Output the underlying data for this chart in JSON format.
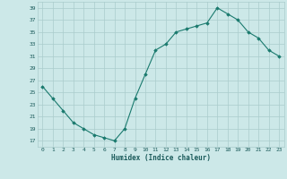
{
  "x": [
    0,
    1,
    2,
    3,
    4,
    5,
    6,
    7,
    8,
    9,
    10,
    11,
    12,
    13,
    14,
    15,
    16,
    17,
    18,
    19,
    20,
    21,
    22,
    23
  ],
  "y": [
    26,
    24,
    22,
    20,
    19,
    18,
    17.5,
    17,
    19,
    24,
    28,
    32,
    33,
    35,
    35.5,
    36,
    36.5,
    39,
    38,
    37,
    35,
    34,
    32,
    31
  ],
  "xlabel": "Humidex (Indice chaleur)",
  "xlim": [
    -0.5,
    23.5
  ],
  "ylim": [
    16,
    40
  ],
  "yticks": [
    17,
    19,
    21,
    23,
    25,
    27,
    29,
    31,
    33,
    35,
    37,
    39
  ],
  "xticks": [
    0,
    1,
    2,
    3,
    4,
    5,
    6,
    7,
    8,
    9,
    10,
    11,
    12,
    13,
    14,
    15,
    16,
    17,
    18,
    19,
    20,
    21,
    22,
    23
  ],
  "line_color": "#1a7a6e",
  "marker": "D",
  "marker_size": 1.8,
  "bg_color": "#cce8e8",
  "grid_color": "#aacccc",
  "tick_label_color": "#1a5a5a",
  "xlabel_color": "#1a5a5a"
}
